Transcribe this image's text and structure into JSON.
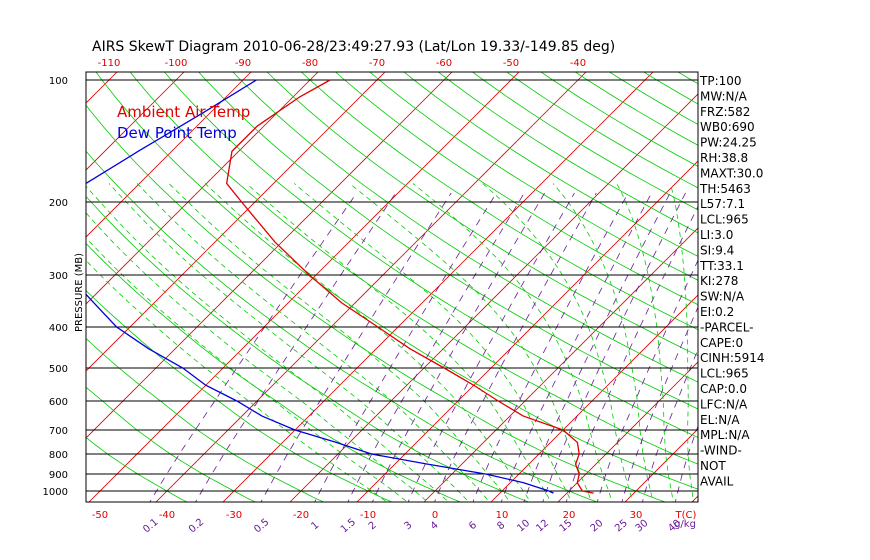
{
  "chart_data": {
    "type": "line",
    "title": "AIRS SkewT Diagram 2010-06-28/23:49:27.93 (Lat/Lon 19.33/-149.85 deg)",
    "ylabel": "PRESSURE (MB)",
    "xunit_label": "T(C)",
    "mixing_unit_label": "g/kg",
    "pressure_ticks": [
      100,
      200,
      300,
      400,
      500,
      600,
      700,
      800,
      900,
      1000
    ],
    "top_temp_ticks": [
      -120,
      -110,
      -100,
      -90,
      -80,
      -70,
      -60,
      -50,
      -40
    ],
    "bottom_temp_ticks": [
      -50,
      -40,
      -30,
      -20,
      -10,
      0,
      10,
      20,
      30,
      40
    ],
    "mixing_ratio_labels": [
      "0.1",
      "0.2",
      "0.5",
      "1",
      "1.5",
      "2",
      "3",
      "4",
      "6",
      "8",
      "10",
      "12",
      "15",
      "20",
      "25",
      "30",
      "40"
    ],
    "legend": [
      {
        "name": "Ambient Air Temp",
        "color": "#e00000"
      },
      {
        "name": "Dew Point Temp",
        "color": "#0000dd"
      }
    ],
    "colors": {
      "isotherm": "#e00000",
      "dry_adiabat": "#00cc00",
      "moist_adiabat": "#00cc00",
      "mixing_ratio": "#6a1b9a",
      "isobar": "#000000"
    },
    "series": [
      {
        "name": "Ambient Air Temp",
        "points": [
          [
            100,
            -77
          ],
          [
            110,
            -79
          ],
          [
            130,
            -81
          ],
          [
            150,
            -81
          ],
          [
            180,
            -77
          ],
          [
            200,
            -72
          ],
          [
            250,
            -61
          ],
          [
            300,
            -51
          ],
          [
            350,
            -42
          ],
          [
            400,
            -33
          ],
          [
            450,
            -25
          ],
          [
            500,
            -17
          ],
          [
            550,
            -10
          ],
          [
            600,
            -4
          ],
          [
            650,
            2
          ],
          [
            700,
            10
          ],
          [
            750,
            14
          ],
          [
            800,
            16
          ],
          [
            850,
            17
          ],
          [
            900,
            19
          ],
          [
            950,
            20
          ],
          [
            1000,
            22
          ],
          [
            1013,
            24
          ]
        ]
      },
      {
        "name": "Dew Point Temp",
        "points": [
          [
            100,
            -88
          ],
          [
            120,
            -91
          ],
          [
            150,
            -95
          ],
          [
            180,
            -98
          ],
          [
            200,
            -99
          ],
          [
            250,
            -97
          ],
          [
            300,
            -87
          ],
          [
            350,
            -79
          ],
          [
            400,
            -72
          ],
          [
            450,
            -64
          ],
          [
            500,
            -56
          ],
          [
            550,
            -50
          ],
          [
            600,
            -43
          ],
          [
            650,
            -37
          ],
          [
            700,
            -30
          ],
          [
            750,
            -22
          ],
          [
            800,
            -15
          ],
          [
            850,
            -5
          ],
          [
            900,
            5
          ],
          [
            950,
            12
          ],
          [
            1000,
            17
          ],
          [
            1013,
            18
          ]
        ]
      }
    ],
    "indices": [
      "TP:100",
      "MW:N/A",
      "FRZ:582",
      "WB0:690",
      "PW:24.25",
      "RH:38.8",
      "MAXT:30.0",
      "TH:5463",
      "L57:7.1",
      "LCL:965",
      "LI:3.0",
      "SI:9.4",
      "TT:33.1",
      "KI:278",
      "SW:N/A",
      "EI:0.2",
      "-PARCEL-",
      "CAPE:0",
      "CINH:5914",
      "LCL:965",
      "CAP:0.0",
      "LFC:N/A",
      "EL:N/A",
      "MPL:N/A",
      "-WIND-",
      "NOT",
      "AVAIL"
    ]
  }
}
